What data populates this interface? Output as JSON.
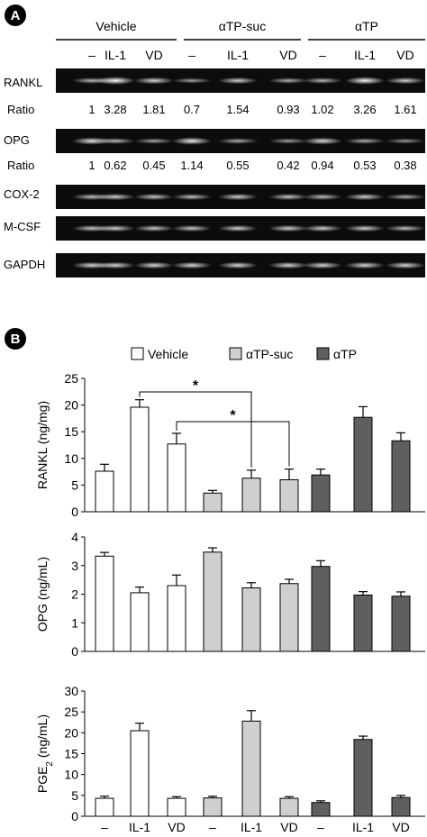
{
  "panel_labels": [
    "A",
    "B"
  ],
  "groups": [
    "Vehicle",
    "αTP-suc",
    "αTP"
  ],
  "conditions": [
    "–",
    "IL-1",
    "VD",
    "–",
    "IL-1",
    "VD",
    "–",
    "IL-1",
    "VD"
  ],
  "blot": {
    "rows": [
      {
        "label": "RANKL",
        "intensity": [
          0.55,
          1.0,
          0.75,
          0.4,
          0.7,
          0.5,
          0.55,
          0.95,
          0.7
        ]
      },
      {
        "label": "OPG",
        "intensity": [
          0.85,
          0.55,
          0.45,
          0.9,
          0.5,
          0.4,
          0.8,
          0.5,
          0.35
        ]
      },
      {
        "label": "COX-2",
        "intensity": [
          0.6,
          0.7,
          0.65,
          0.6,
          0.7,
          0.65,
          0.6,
          0.7,
          0.5
        ]
      },
      {
        "label": "M-CSF",
        "intensity": [
          0.65,
          0.7,
          0.65,
          0.65,
          0.7,
          0.7,
          0.7,
          0.7,
          0.6
        ]
      },
      {
        "label": "GAPDH",
        "intensity": [
          0.75,
          0.75,
          0.75,
          0.75,
          0.75,
          0.75,
          0.75,
          0.75,
          0.75
        ]
      }
    ],
    "ratio_label": "Ratio",
    "rankl_ratio": [
      "1",
      "3.28",
      "1.81",
      "0.7",
      "1.54",
      "0.93",
      "1.02",
      "3.26",
      "1.61"
    ],
    "opg_ratio": [
      "1",
      "0.62",
      "0.45",
      "1.14",
      "0.55",
      "0.42",
      "0.94",
      "0.53",
      "0.38"
    ]
  },
  "legend": [
    {
      "name": "Vehicle",
      "color": "#ffffff"
    },
    {
      "name": "αTP-suc",
      "color": "#cfcfcf"
    },
    {
      "name": "αTP",
      "color": "#5f5f5f"
    }
  ],
  "significance_mark": "*",
  "chart_data": [
    {
      "type": "bar",
      "ylabel": "RANKL (ng/mg)",
      "ylim": [
        0,
        25
      ],
      "yticks": [
        0,
        5,
        10,
        15,
        20,
        25
      ],
      "categories": [
        "–",
        "IL-1",
        "VD",
        "–",
        "IL-1",
        "VD",
        "–",
        "IL-1",
        "VD"
      ],
      "groups": [
        "Vehicle",
        "Vehicle",
        "Vehicle",
        "αTP-suc",
        "αTP-suc",
        "αTP-suc",
        "αTP",
        "αTP",
        "αTP"
      ],
      "values": [
        7.6,
        19.6,
        12.7,
        3.5,
        6.3,
        6.0,
        6.9,
        17.7,
        13.3
      ],
      "errors": [
        1.3,
        1.4,
        2.0,
        0.5,
        1.5,
        2.0,
        1.1,
        2.0,
        1.5
      ],
      "significance": [
        {
          "from": "IL-1 (Vehicle)",
          "to": "IL-1 (αTP-suc)",
          "label": "*"
        },
        {
          "from": "VD (Vehicle)",
          "to": "VD (αTP-suc)",
          "label": "*"
        }
      ]
    },
    {
      "type": "bar",
      "ylabel": "OPG (ng/mL)",
      "ylim": [
        0,
        4
      ],
      "yticks": [
        0,
        1,
        2,
        3,
        4
      ],
      "categories": [
        "–",
        "IL-1",
        "VD",
        "–",
        "IL-1",
        "VD",
        "–",
        "IL-1",
        "VD"
      ],
      "groups": [
        "Vehicle",
        "Vehicle",
        "Vehicle",
        "αTP-suc",
        "αTP-suc",
        "αTP-suc",
        "αTP",
        "αTP",
        "αTP"
      ],
      "values": [
        3.33,
        2.05,
        2.3,
        3.47,
        2.22,
        2.37,
        2.97,
        1.97,
        1.93
      ],
      "errors": [
        0.13,
        0.2,
        0.37,
        0.15,
        0.18,
        0.15,
        0.2,
        0.12,
        0.15
      ]
    },
    {
      "type": "bar",
      "ylabel": "PGE2 (ng/mL)",
      "ylim": [
        0,
        30
      ],
      "yticks": [
        0,
        5,
        10,
        15,
        20,
        25,
        30
      ],
      "categories": [
        "–",
        "IL-1",
        "VD",
        "–",
        "IL-1",
        "VD",
        "–",
        "IL-1",
        "VD"
      ],
      "groups": [
        "Vehicle",
        "Vehicle",
        "Vehicle",
        "αTP-suc",
        "αTP-suc",
        "αTP-suc",
        "αTP",
        "αTP",
        "αTP"
      ],
      "values": [
        4.3,
        20.5,
        4.3,
        4.4,
        22.8,
        4.3,
        3.3,
        18.4,
        4.5
      ],
      "errors": [
        0.5,
        1.8,
        0.4,
        0.4,
        2.5,
        0.4,
        0.4,
        0.8,
        0.5
      ]
    }
  ]
}
